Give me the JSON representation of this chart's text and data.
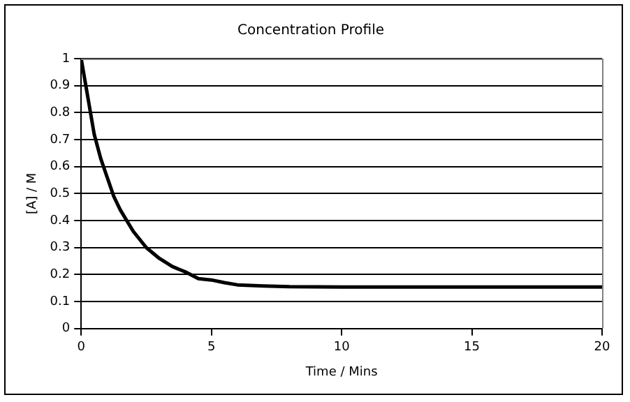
{
  "chart_data": {
    "type": "line",
    "title": "Concentration Profile",
    "xlabel": "Time / Mins",
    "ylabel": "[A] / M",
    "x": [
      0,
      0.25,
      0.5,
      0.75,
      1,
      1.25,
      1.5,
      2,
      2.5,
      3,
      3.5,
      4,
      4.5,
      5,
      5.5,
      6,
      7,
      8,
      10,
      12,
      15,
      20
    ],
    "series": [
      {
        "color": "#000000",
        "values": [
          1,
          0.86,
          0.72,
          0.63,
          0.56,
          0.49,
          0.44,
          0.36,
          0.3,
          0.26,
          0.23,
          0.21,
          0.185,
          0.18,
          0.17,
          0.162,
          0.158,
          0.155,
          0.154,
          0.154,
          0.154,
          0.154
        ]
      }
    ],
    "xlim": [
      0,
      20
    ],
    "xticks": [
      0,
      5,
      10,
      15,
      20
    ],
    "ylim": [
      0,
      1
    ],
    "yticks": [
      0,
      0.1,
      0.2,
      0.3,
      0.4,
      0.5,
      0.6,
      0.7,
      0.8,
      0.9,
      1
    ],
    "grid": "y",
    "legend": false,
    "marker": "none",
    "line_style": "solid"
  }
}
